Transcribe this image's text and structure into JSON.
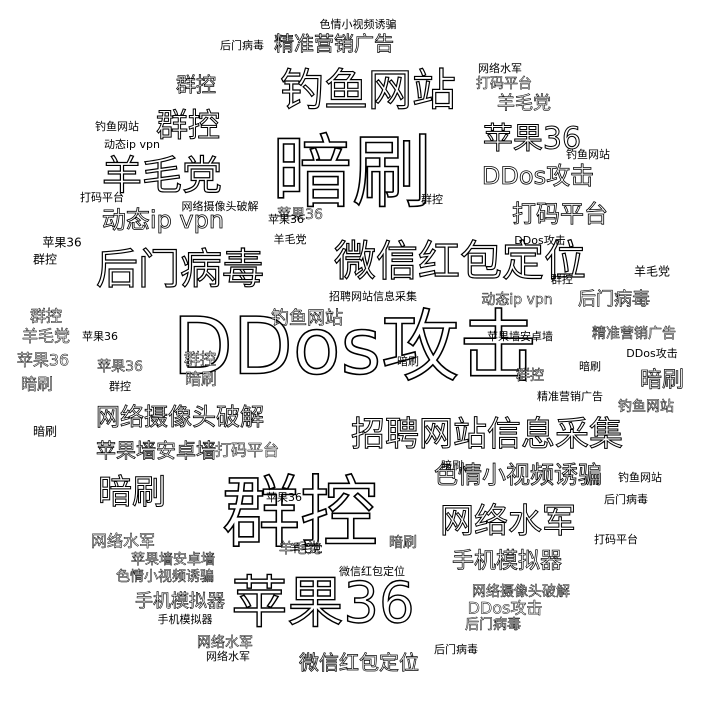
{
  "cloud": {
    "ink_color": "#000000",
    "background_color": "#ffffff",
    "words": [
      {
        "text": "DDos攻击",
        "weight": 10,
        "style": "outline"
      },
      {
        "text": "暗刷",
        "weight": 9,
        "style": "outline"
      },
      {
        "text": "群控",
        "weight": 8,
        "style": "outline"
      },
      {
        "text": "苹果36",
        "weight": 7,
        "style": "outline"
      },
      {
        "text": "微信红包定位",
        "weight": 6,
        "style": "outline"
      },
      {
        "text": "后门病毒",
        "weight": 6,
        "style": "outline"
      },
      {
        "text": "钓鱼网站",
        "weight": 6,
        "style": "outline"
      },
      {
        "text": "羊毛党",
        "weight": 5,
        "style": "outline"
      },
      {
        "text": "招聘网站信息采集",
        "weight": 5,
        "style": "outline"
      },
      {
        "text": "网络水军",
        "weight": 5,
        "style": "outline"
      },
      {
        "text": "群控",
        "weight": 5,
        "style": "outline"
      },
      {
        "text": "暗刷",
        "weight": 5,
        "style": "outline"
      },
      {
        "text": "苹果36",
        "weight": 4,
        "style": "outline"
      },
      {
        "text": "网络摄像头破解",
        "weight": 4,
        "style": "outline"
      },
      {
        "text": "色情小视频诱骗",
        "weight": 4,
        "style": "outline"
      },
      {
        "text": "DDos攻击",
        "weight": 4,
        "style": "outline"
      },
      {
        "text": "打码平台",
        "weight": 4,
        "style": "outline"
      },
      {
        "text": "动态ip vpn",
        "weight": 4,
        "style": "outline"
      },
      {
        "text": "手机模拟器",
        "weight": 3,
        "style": "outline"
      },
      {
        "text": "苹果墙安卓墙",
        "weight": 3,
        "style": "outline"
      },
      {
        "text": "精准营销广告",
        "weight": 3,
        "style": "outline"
      },
      {
        "text": "微信红包定位",
        "weight": 3,
        "style": "outline"
      },
      {
        "text": "暗刷",
        "weight": 3,
        "style": "outline"
      },
      {
        "text": "群控",
        "weight": 3,
        "style": "outline"
      },
      {
        "text": "羊毛党",
        "weight": 3,
        "style": "outline"
      },
      {
        "text": "后门病毒",
        "weight": 3,
        "style": "outline"
      },
      {
        "text": "钓鱼网站",
        "weight": 3,
        "style": "outline"
      },
      {
        "text": "手机模拟器",
        "weight": 3,
        "style": "outline"
      },
      {
        "text": "群控",
        "weight": 2,
        "style": "outline"
      },
      {
        "text": "苹果36",
        "weight": 2,
        "style": "outline"
      },
      {
        "text": "网络水军",
        "weight": 2,
        "style": "outline"
      },
      {
        "text": "打码平台",
        "weight": 2,
        "style": "outline"
      },
      {
        "text": "DDos攻击",
        "weight": 2,
        "style": "outline"
      },
      {
        "text": "苹果墙安卓墙",
        "weight": 2,
        "style": "outline"
      },
      {
        "text": "色情小视频诱骗",
        "weight": 2,
        "style": "outline"
      },
      {
        "text": "动态ip vpn",
        "weight": 2,
        "style": "outline"
      },
      {
        "text": "网络摄像头破解",
        "weight": 2,
        "style": "outline"
      },
      {
        "text": "羊毛党",
        "weight": 2,
        "style": "outline"
      },
      {
        "text": "暗刷",
        "weight": 2,
        "style": "outline"
      },
      {
        "text": "后门病毒",
        "weight": 2,
        "style": "outline"
      },
      {
        "text": "精准营销广告",
        "weight": 2,
        "style": "outline"
      },
      {
        "text": "苹果36",
        "weight": 2,
        "style": "outline"
      },
      {
        "text": "钓鱼网站",
        "weight": 2,
        "style": "outline"
      },
      {
        "text": "群控",
        "weight": 2,
        "style": "outline"
      },
      {
        "text": "暗刷",
        "weight": 2,
        "style": "outline"
      },
      {
        "text": "羊毛党",
        "weight": 2,
        "style": "outline"
      },
      {
        "text": "苹果36",
        "weight": 2,
        "style": "outline"
      },
      {
        "text": "群控",
        "weight": 2,
        "style": "outline"
      },
      {
        "text": "暗刷",
        "weight": 2,
        "style": "outline"
      },
      {
        "text": "网络水军",
        "weight": 2,
        "style": "outline"
      },
      {
        "text": "打码平台",
        "weight": 2,
        "style": "outline"
      },
      {
        "text": "苹果36",
        "weight": 1,
        "style": "solid"
      },
      {
        "text": "群控",
        "weight": 1,
        "style": "solid"
      },
      {
        "text": "暗刷",
        "weight": 1,
        "style": "solid"
      },
      {
        "text": "羊毛党",
        "weight": 1,
        "style": "solid"
      },
      {
        "text": "钓鱼网站",
        "weight": 1,
        "style": "solid"
      },
      {
        "text": "后门病毒",
        "weight": 1,
        "style": "solid"
      },
      {
        "text": "DDos攻击",
        "weight": 1,
        "style": "solid"
      },
      {
        "text": "打码平台",
        "weight": 1,
        "style": "solid"
      },
      {
        "text": "网络水军",
        "weight": 1,
        "style": "solid"
      },
      {
        "text": "动态ip vpn",
        "weight": 1,
        "style": "solid"
      },
      {
        "text": "手机模拟器",
        "weight": 1,
        "style": "solid"
      },
      {
        "text": "苹果墙安卓墙",
        "weight": 1,
        "style": "solid"
      },
      {
        "text": "精准营销广告",
        "weight": 1,
        "style": "solid"
      },
      {
        "text": "色情小视频诱骗",
        "weight": 1,
        "style": "solid"
      },
      {
        "text": "网络摄像头破解",
        "weight": 1,
        "style": "solid"
      },
      {
        "text": "微信红包定位",
        "weight": 1,
        "style": "solid"
      },
      {
        "text": "招聘网站信息采集",
        "weight": 1,
        "style": "solid"
      },
      {
        "text": "群控",
        "weight": 1,
        "style": "solid"
      },
      {
        "text": "暗刷",
        "weight": 1,
        "style": "solid"
      },
      {
        "text": "苹果36",
        "weight": 1,
        "style": "solid"
      },
      {
        "text": "羊毛党",
        "weight": 1,
        "style": "solid"
      },
      {
        "text": "钓鱼网站",
        "weight": 1,
        "style": "solid"
      },
      {
        "text": "后门病毒",
        "weight": 1,
        "style": "solid"
      },
      {
        "text": "打码平台",
        "weight": 1,
        "style": "solid"
      },
      {
        "text": "DDos攻击",
        "weight": 1,
        "style": "solid"
      },
      {
        "text": "网络水军",
        "weight": 1,
        "style": "solid"
      },
      {
        "text": "群控",
        "weight": 1,
        "style": "solid"
      },
      {
        "text": "暗刷",
        "weight": 1,
        "style": "solid"
      },
      {
        "text": "苹果36",
        "weight": 1,
        "style": "solid"
      },
      {
        "text": "羊毛党",
        "weight": 1,
        "style": "solid"
      },
      {
        "text": "群控",
        "weight": 1,
        "style": "solid"
      },
      {
        "text": "暗刷",
        "weight": 1,
        "style": "solid"
      },
      {
        "text": "钓鱼网站",
        "weight": 1,
        "style": "solid"
      },
      {
        "text": "后门病毒",
        "weight": 1,
        "style": "solid"
      },
      {
        "text": "苹果36",
        "weight": 1,
        "style": "solid"
      }
    ]
  }
}
